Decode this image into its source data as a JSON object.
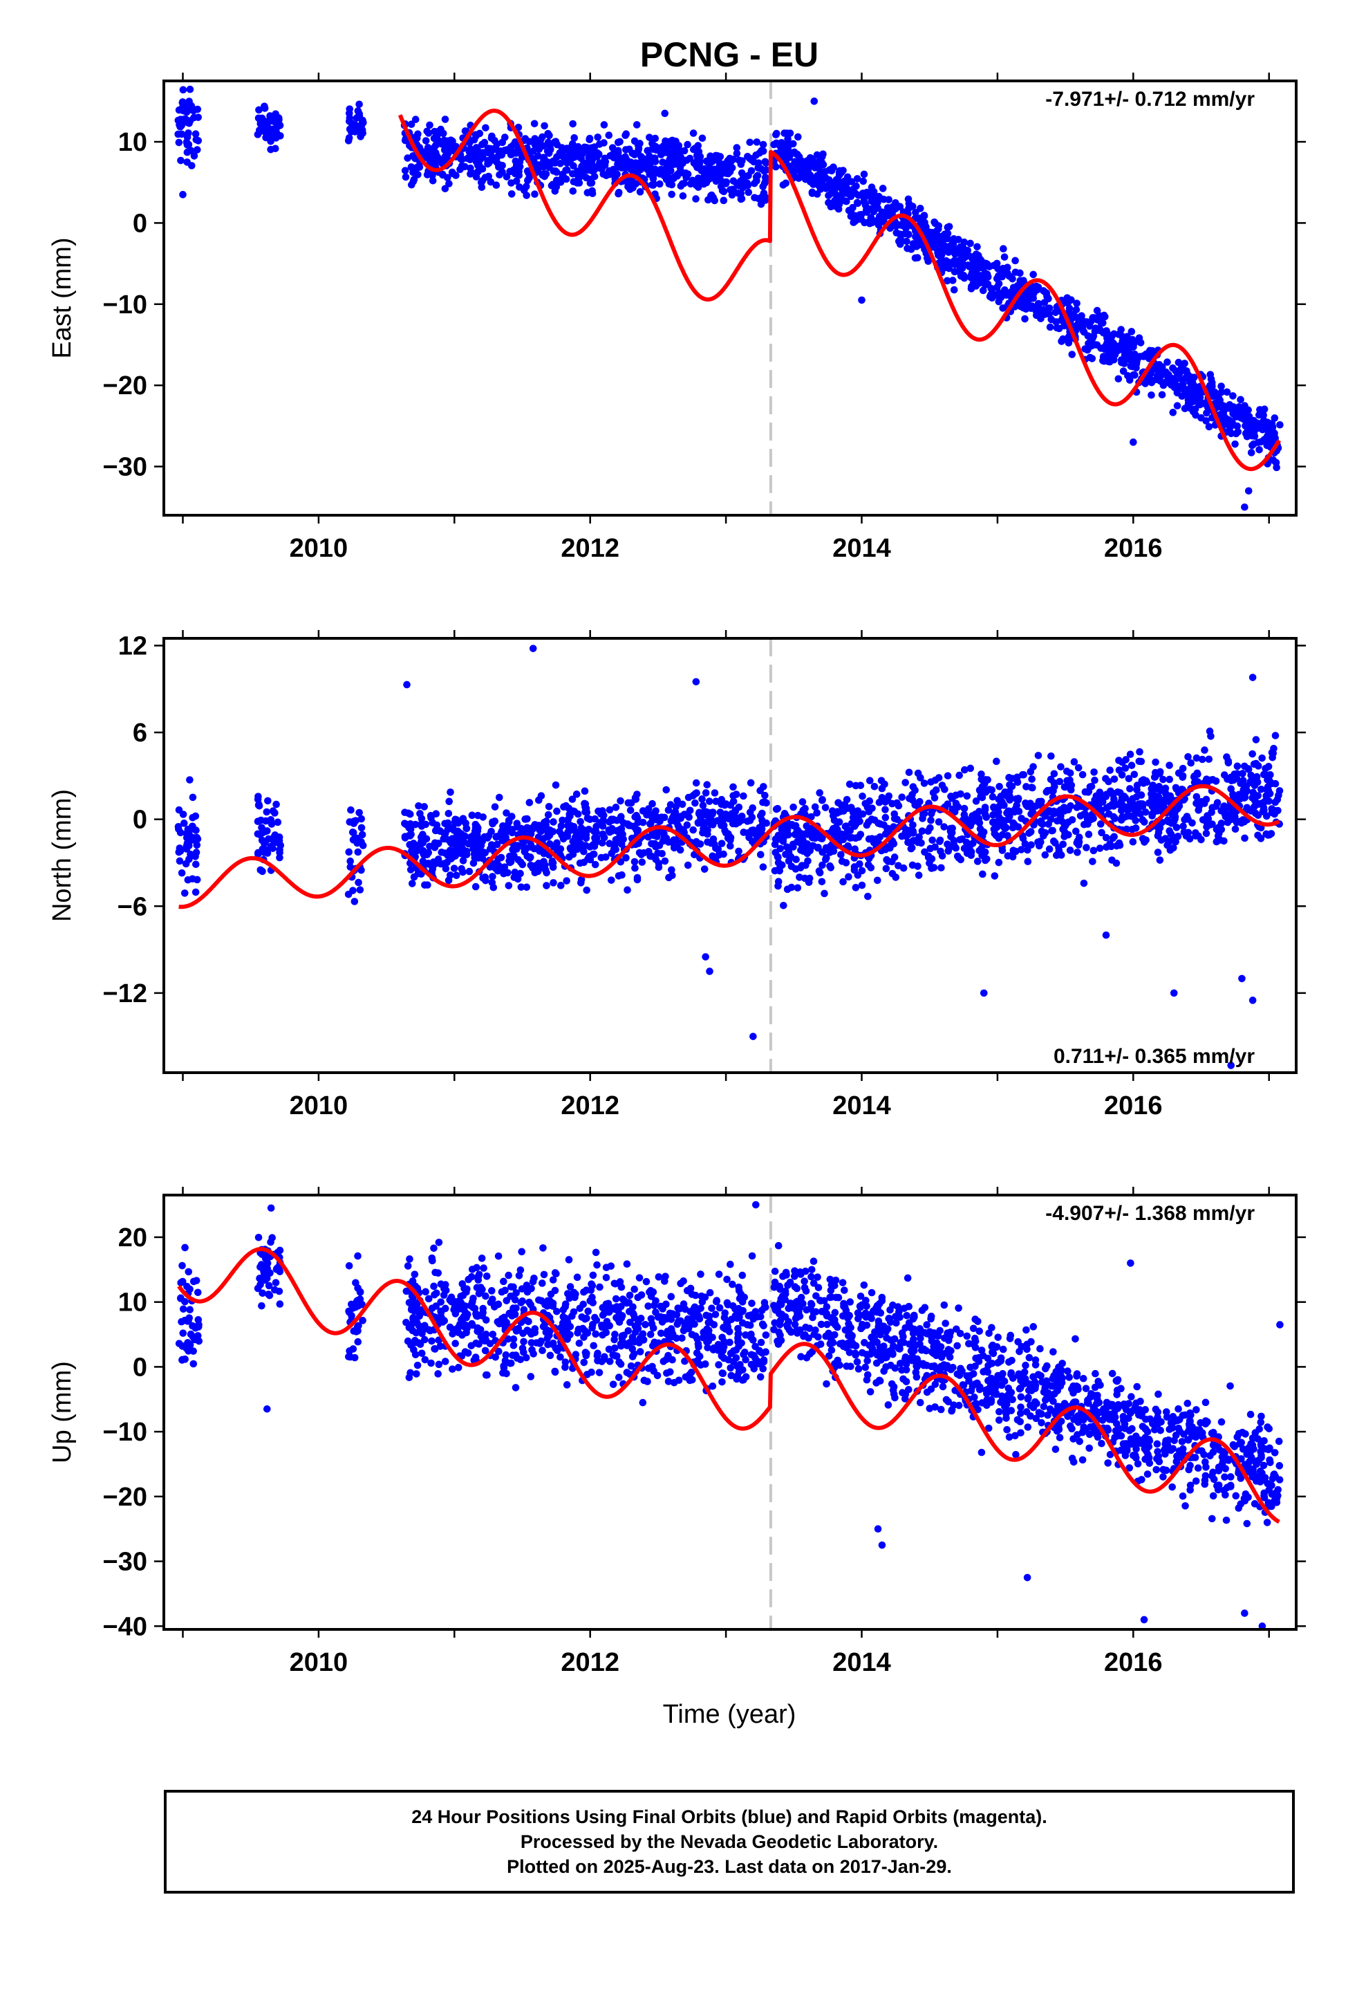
{
  "title": "PCNG - EU",
  "xlabel": "Time (year)",
  "footer": {
    "line1": "24 Hour Positions Using Final Orbits (blue) and Rapid Orbits (magenta).",
    "line2": "Processed by the Nevada Geodetic Laboratory.",
    "line3": "Plotted on 2025-Aug-23. Last data on 2017-Jan-29."
  },
  "colors": {
    "points": "#0000ff",
    "model": "#ff0000",
    "break": "#c8c8c8",
    "frame": "#000000"
  },
  "chart_data": [
    {
      "type": "scatter",
      "ylabel": "East (mm)",
      "rate": "-7.971+/- 0.712 mm/yr",
      "rate_position": "top-right",
      "xlim": [
        2008.86,
        2017.2
      ],
      "ylim": [
        -36,
        17.5
      ],
      "xticks": [
        2010,
        2012,
        2014,
        2016
      ],
      "yticks": [
        -30,
        -20,
        -10,
        0,
        10
      ],
      "equipment_change": 2013.33,
      "model_start": 2010.6,
      "model": {
        "offset": 14,
        "trend": -7.971,
        "ref": 2010.6,
        "annual": 5.5,
        "phase": 2011.33,
        "step": 2013.33,
        "step_size": 11
      },
      "point_segments": [
        {
          "start": 2008.96,
          "end": 2009.12,
          "mean_start": 12,
          "mean_end": 12,
          "spread": 2.8
        },
        {
          "start": 2009.55,
          "end": 2009.72,
          "mean_start": 12,
          "mean_end": 12,
          "spread": 1.5
        },
        {
          "start": 2010.22,
          "end": 2010.33,
          "mean_start": 12.5,
          "mean_end": 12.5,
          "spread": 1.5
        },
        {
          "start": 2010.63,
          "end": 2013.3,
          "mean_start": 9,
          "mean_end": 6,
          "spread": 2.6
        },
        {
          "start": 2013.35,
          "end": 2017.08,
          "mean_start": 9,
          "mean_end": -27,
          "spread": 2.2
        }
      ],
      "outliers": [
        [
          2009.0,
          3.5
        ],
        [
          2012.55,
          13.5
        ],
        [
          2013.65,
          15
        ],
        [
          2014.0,
          -9.5
        ],
        [
          2016.0,
          -27
        ],
        [
          2016.82,
          -35
        ],
        [
          2016.85,
          -33
        ]
      ]
    },
    {
      "type": "scatter",
      "ylabel": "North (mm)",
      "rate": "0.711+/- 0.365 mm/yr",
      "rate_position": "bottom-right",
      "xlim": [
        2008.86,
        2017.2
      ],
      "ylim": [
        -17.5,
        12.5
      ],
      "xticks": [
        2010,
        2012,
        2014,
        2016
      ],
      "yticks": [
        -12,
        -6,
        0,
        6,
        12
      ],
      "equipment_change": 2013.33,
      "model_start": 2008.97,
      "model": {
        "offset": -1.7,
        "trend": 0.711,
        "ref": 2013.0,
        "annual": 1.5,
        "phase": 2009.5,
        "step": 2013.33,
        "step_size": 0
      },
      "point_segments": [
        {
          "start": 2008.96,
          "end": 2009.12,
          "mean_start": -1.5,
          "mean_end": -1.5,
          "spread": 2.6
        },
        {
          "start": 2009.55,
          "end": 2009.72,
          "mean_start": -1,
          "mean_end": -1,
          "spread": 2
        },
        {
          "start": 2010.22,
          "end": 2010.33,
          "mean_start": -2,
          "mean_end": -2,
          "spread": 3
        },
        {
          "start": 2010.63,
          "end": 2013.3,
          "mean_start": -2,
          "mean_end": -0.5,
          "spread": 2
        },
        {
          "start": 2013.35,
          "end": 2017.08,
          "mean_start": -1.5,
          "mean_end": 2,
          "spread": 2.4
        }
      ],
      "outliers": [
        [
          2011.58,
          11.8
        ],
        [
          2010.65,
          9.3
        ],
        [
          2012.78,
          9.5
        ],
        [
          2016.88,
          9.8
        ],
        [
          2012.85,
          -9.5
        ],
        [
          2012.88,
          -10.5
        ],
        [
          2013.2,
          -15
        ],
        [
          2014.9,
          -12
        ],
        [
          2015.8,
          -8
        ],
        [
          2016.3,
          -12
        ],
        [
          2016.8,
          -11
        ],
        [
          2016.88,
          -12.5
        ],
        [
          2016.72,
          -17
        ]
      ]
    },
    {
      "type": "scatter",
      "ylabel": "Up (mm)",
      "rate": "-4.907+/- 1.368 mm/yr",
      "rate_position": "top-right",
      "xlim": [
        2008.86,
        2017.2
      ],
      "ylim": [
        -40.5,
        26.5
      ],
      "xticks": [
        2010,
        2012,
        2014,
        2016
      ],
      "yticks": [
        -40,
        -30,
        -20,
        -10,
        0,
        10,
        20
      ],
      "equipment_change": 2013.33,
      "model_start": 2008.97,
      "model": {
        "offset": 16,
        "trend": -4.907,
        "ref": 2008.97,
        "annual": 5.2,
        "phase": 2009.6,
        "step": 2013.33,
        "step_size": 5
      },
      "point_segments": [
        {
          "start": 2008.96,
          "end": 2009.12,
          "mean_start": 8,
          "mean_end": 8,
          "spread": 6
        },
        {
          "start": 2009.55,
          "end": 2009.72,
          "mean_start": 15,
          "mean_end": 15,
          "spread": 5
        },
        {
          "start": 2010.22,
          "end": 2010.33,
          "mean_start": 8,
          "mean_end": 8,
          "spread": 6
        },
        {
          "start": 2010.63,
          "end": 2013.3,
          "mean_start": 8,
          "mean_end": 5,
          "spread": 6
        },
        {
          "start": 2013.35,
          "end": 2017.08,
          "mean_start": 10,
          "mean_end": -17,
          "spread": 5.5
        }
      ],
      "outliers": [
        [
          2009.62,
          -6.5
        ],
        [
          2009.65,
          24.5
        ],
        [
          2013.22,
          25
        ],
        [
          2014.12,
          -25
        ],
        [
          2014.15,
          -27.5
        ],
        [
          2015.22,
          -32.5
        ],
        [
          2015.98,
          16
        ],
        [
          2016.08,
          -39
        ],
        [
          2016.82,
          -38
        ],
        [
          2016.95,
          -40
        ],
        [
          2017.08,
          6.5
        ]
      ]
    }
  ]
}
